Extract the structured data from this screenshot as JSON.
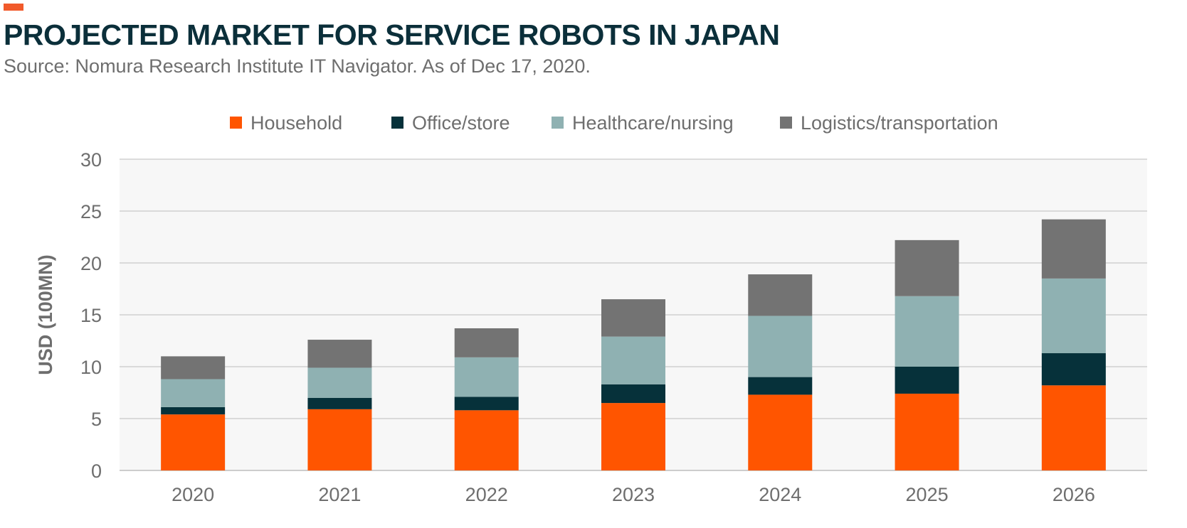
{
  "header": {
    "title": "PROJECTED MARKET FOR SERVICE ROBOTS IN JAPAN",
    "subtitle": "Source: Nomura Research Institute IT Navigator. As of Dec 17, 2020."
  },
  "colors": {
    "accent": "#F15A2B",
    "title": "#0B2F3A",
    "axis_text": "#6E6E6E",
    "plot_background": "#F7F7F7",
    "grid": "#BDBDBD"
  },
  "chart_data": {
    "type": "bar",
    "stacked": true,
    "title": "",
    "xlabel": "",
    "ylabel": "USD (100MN)",
    "ylim": [
      0,
      30
    ],
    "yticks": [
      0,
      5,
      10,
      15,
      20,
      25,
      30
    ],
    "grid": true,
    "legend_position": "top",
    "categories": [
      "2020",
      "2021",
      "2022",
      "2023",
      "2024",
      "2025",
      "2026"
    ],
    "series": [
      {
        "name": "Household",
        "color": "#FF5500",
        "values": [
          5.4,
          5.9,
          5.8,
          6.5,
          7.3,
          7.4,
          8.2
        ]
      },
      {
        "name": "Office/store",
        "color": "#06313A",
        "values": [
          0.7,
          1.1,
          1.3,
          1.8,
          1.7,
          2.6,
          3.1
        ]
      },
      {
        "name": "Healthcare/nursing",
        "color": "#8FB1B2",
        "values": [
          2.7,
          2.9,
          3.8,
          4.6,
          5.9,
          6.8,
          7.2
        ]
      },
      {
        "name": "Logistics/transportation",
        "color": "#737373",
        "values": [
          2.2,
          2.7,
          2.8,
          3.6,
          4.0,
          5.4,
          5.7
        ]
      }
    ]
  }
}
